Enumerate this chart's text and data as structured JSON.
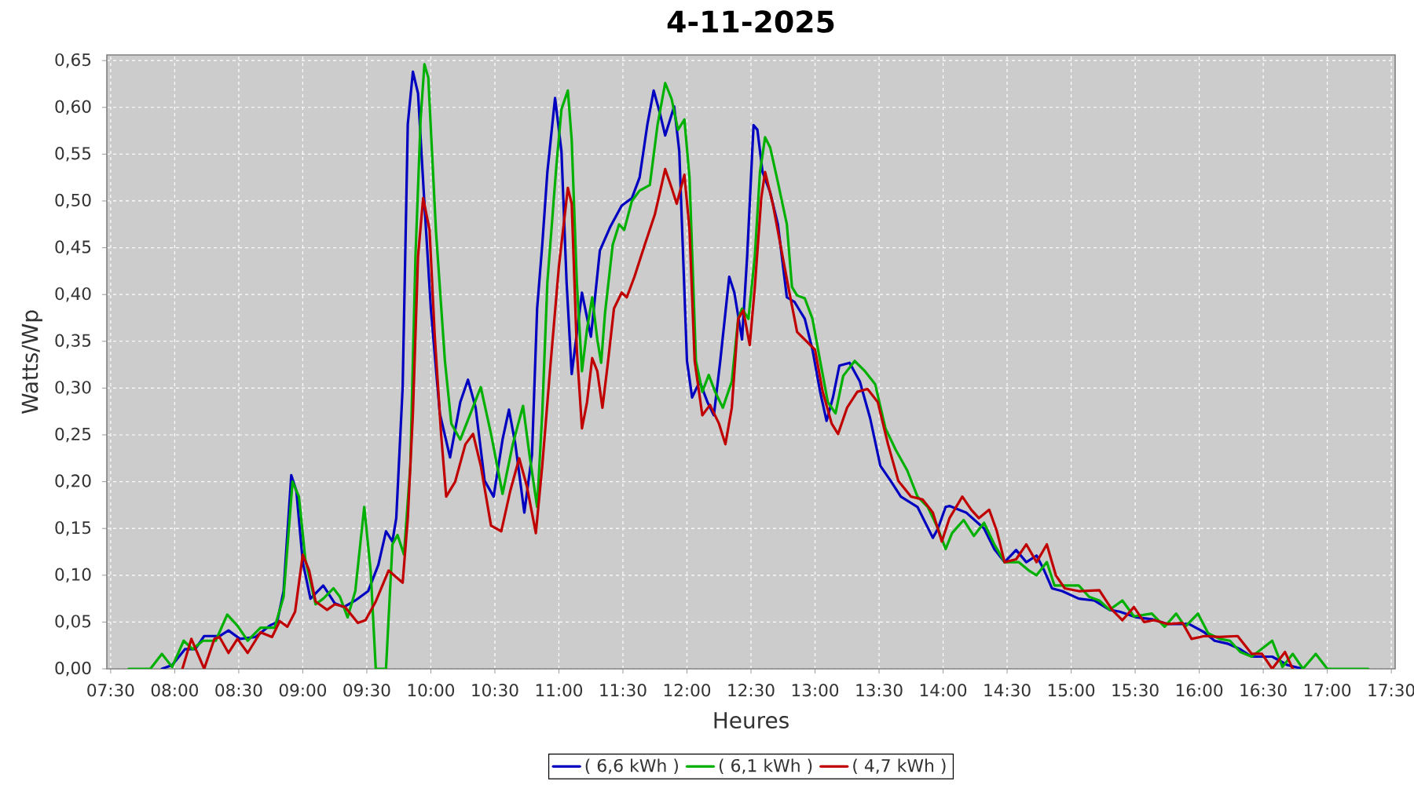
{
  "chart_data": {
    "type": "line",
    "title": "4-11-2025",
    "xlabel": "Heures",
    "ylabel": "Watts/Wp",
    "xlim": [
      7.47,
      17.53
    ],
    "ylim": [
      0,
      0.656
    ],
    "xticks": [
      {
        "value": 7.5,
        "label": "07:30"
      },
      {
        "value": 8,
        "label": "08:00"
      },
      {
        "value": 8.5,
        "label": "08:30"
      },
      {
        "value": 9,
        "label": "09:00"
      },
      {
        "value": 9.5,
        "label": "09:30"
      },
      {
        "value": 10,
        "label": "10:00"
      },
      {
        "value": 10.5,
        "label": "10:30"
      },
      {
        "value": 11,
        "label": "11:00"
      },
      {
        "value": 11.5,
        "label": "11:30"
      },
      {
        "value": 12,
        "label": "12:00"
      },
      {
        "value": 12.5,
        "label": "12:30"
      },
      {
        "value": 13,
        "label": "13:00"
      },
      {
        "value": 13.5,
        "label": "13:30"
      },
      {
        "value": 14,
        "label": "14:00"
      },
      {
        "value": 14.5,
        "label": "14:30"
      },
      {
        "value": 15,
        "label": "15:00"
      },
      {
        "value": 15.5,
        "label": "15:30"
      },
      {
        "value": 16,
        "label": "16:00"
      },
      {
        "value": 16.5,
        "label": "16:30"
      },
      {
        "value": 17,
        "label": "17:00"
      },
      {
        "value": 17.5,
        "label": "17:30"
      }
    ],
    "yticks": [
      {
        "value": 0,
        "label": "0,00"
      },
      {
        "value": 0.05,
        "label": "0,05"
      },
      {
        "value": 0.1,
        "label": "0,10"
      },
      {
        "value": 0.15,
        "label": "0,15"
      },
      {
        "value": 0.2,
        "label": "0,20"
      },
      {
        "value": 0.25,
        "label": "0,25"
      },
      {
        "value": 0.3,
        "label": "0,30"
      },
      {
        "value": 0.35,
        "label": "0,35"
      },
      {
        "value": 0.4,
        "label": "0,40"
      },
      {
        "value": 0.45,
        "label": "0,45"
      },
      {
        "value": 0.5,
        "label": "0,50"
      },
      {
        "value": 0.55,
        "label": "0,55"
      },
      {
        "value": 0.6,
        "label": "0,60"
      },
      {
        "value": 0.65,
        "label": "0,65"
      }
    ],
    "grid": true,
    "legend": "bottom",
    "series": [
      {
        "name": "( 6,6 kWh )",
        "color": "#0000c0",
        "x": [
          7.9,
          7.98,
          8.08,
          8.16,
          8.23,
          8.35,
          8.42,
          8.51,
          8.63,
          8.74,
          8.8,
          8.85,
          8.91,
          8.95,
          9.0,
          9.06,
          9.16,
          9.25,
          9.32,
          9.41,
          9.51,
          9.59,
          9.65,
          9.7,
          9.73,
          9.78,
          9.82,
          9.86,
          9.9,
          9.95,
          10.0,
          10.07,
          10.15,
          10.23,
          10.29,
          10.35,
          10.42,
          10.49,
          10.56,
          10.61,
          10.66,
          10.73,
          10.79,
          10.83,
          10.87,
          10.91,
          10.97,
          11.02,
          11.06,
          11.1,
          11.18,
          11.25,
          11.32,
          11.4,
          11.49,
          11.57,
          11.63,
          11.69,
          11.74,
          11.79,
          11.83,
          11.9,
          11.94,
          12.0,
          12.04,
          12.1,
          12.16,
          12.21,
          12.26,
          12.33,
          12.37,
          12.43,
          12.47,
          12.52,
          12.55,
          12.59,
          12.65,
          12.71,
          12.78,
          12.84,
          12.92,
          12.98,
          13.04,
          13.09,
          13.14,
          13.19,
          13.27,
          13.35,
          13.43,
          13.51,
          13.59,
          13.67,
          13.8,
          13.92,
          13.96,
          14.02,
          14.05,
          14.18,
          14.32,
          14.4,
          14.48,
          14.57,
          14.65,
          14.73,
          14.79,
          14.85,
          14.93,
          15.06,
          15.18,
          15.3,
          15.38,
          15.51,
          15.63,
          15.75,
          15.92,
          16.04,
          16.12,
          16.22,
          16.32,
          16.41,
          16.57,
          16.69,
          16.81
        ],
        "values": [
          0,
          0.004,
          0.021,
          0.021,
          0.035,
          0.035,
          0.041,
          0.032,
          0.034,
          0.046,
          0.05,
          0.083,
          0.207,
          0.19,
          0.114,
          0.075,
          0.089,
          0.07,
          0.066,
          0.073,
          0.083,
          0.111,
          0.147,
          0.136,
          0.161,
          0.301,
          0.582,
          0.638,
          0.615,
          0.497,
          0.385,
          0.273,
          0.226,
          0.285,
          0.309,
          0.279,
          0.201,
          0.184,
          0.245,
          0.277,
          0.24,
          0.167,
          0.229,
          0.385,
          0.453,
          0.531,
          0.61,
          0.553,
          0.413,
          0.315,
          0.402,
          0.355,
          0.447,
          0.472,
          0.495,
          0.503,
          0.525,
          0.581,
          0.618,
          0.593,
          0.57,
          0.601,
          0.553,
          0.329,
          0.29,
          0.307,
          0.285,
          0.271,
          0.329,
          0.419,
          0.402,
          0.352,
          0.441,
          0.581,
          0.576,
          0.531,
          0.509,
          0.475,
          0.397,
          0.392,
          0.374,
          0.341,
          0.296,
          0.265,
          0.29,
          0.324,
          0.327,
          0.307,
          0.268,
          0.217,
          0.201,
          0.184,
          0.173,
          0.14,
          0.15,
          0.173,
          0.174,
          0.167,
          0.15,
          0.128,
          0.114,
          0.127,
          0.114,
          0.121,
          0.105,
          0.086,
          0.083,
          0.075,
          0.073,
          0.063,
          0.061,
          0.055,
          0.053,
          0.048,
          0.048,
          0.039,
          0.03,
          0.027,
          0.021,
          0.013,
          0.013,
          0.004,
          0
        ]
      },
      {
        "name": "( 6,1 kWh )",
        "color": "#00b000",
        "x": [
          7.64,
          7.81,
          7.9,
          7.98,
          8.07,
          8.14,
          8.22,
          8.32,
          8.41,
          8.49,
          8.57,
          8.67,
          8.78,
          8.85,
          8.92,
          8.97,
          9.02,
          9.1,
          9.16,
          9.24,
          9.29,
          9.35,
          9.41,
          9.48,
          9.53,
          9.57,
          9.65,
          9.7,
          9.74,
          9.79,
          9.84,
          9.88,
          9.92,
          9.95,
          9.98,
          10.04,
          10.11,
          10.16,
          10.23,
          10.31,
          10.39,
          10.47,
          10.56,
          10.64,
          10.72,
          10.77,
          10.83,
          10.87,
          10.91,
          10.98,
          11.02,
          11.07,
          11.1,
          11.14,
          11.18,
          11.22,
          11.26,
          11.3,
          11.33,
          11.36,
          11.42,
          11.47,
          11.51,
          11.57,
          11.63,
          11.71,
          11.77,
          11.83,
          11.88,
          11.93,
          11.98,
          12.02,
          12.07,
          12.12,
          12.17,
          12.22,
          12.28,
          12.35,
          12.4,
          12.43,
          12.48,
          12.53,
          12.57,
          12.61,
          12.65,
          12.71,
          12.78,
          12.82,
          12.86,
          12.92,
          12.98,
          13.04,
          13.1,
          13.16,
          13.22,
          13.31,
          13.39,
          13.47,
          13.55,
          13.63,
          13.72,
          13.8,
          13.88,
          13.96,
          14.02,
          14.07,
          14.16,
          14.24,
          14.32,
          14.4,
          14.48,
          14.59,
          14.67,
          14.73,
          14.81,
          14.87,
          14.97,
          15.06,
          15.14,
          15.22,
          15.3,
          15.4,
          15.49,
          15.63,
          15.73,
          15.82,
          15.89,
          15.99,
          16.07,
          16.16,
          16.24,
          16.32,
          16.41,
          16.57,
          16.65,
          16.73,
          16.81,
          16.91,
          17.0,
          17.06,
          17.32
        ],
        "values": [
          0,
          0,
          0.016,
          0.002,
          0.03,
          0.021,
          0.03,
          0.03,
          0.058,
          0.046,
          0.03,
          0.044,
          0.044,
          0.077,
          0.2,
          0.184,
          0.117,
          0.069,
          0.075,
          0.086,
          0.077,
          0.055,
          0.083,
          0.173,
          0.105,
          0,
          0,
          0.133,
          0.143,
          0.122,
          0.217,
          0.441,
          0.587,
          0.646,
          0.632,
          0.468,
          0.329,
          0.262,
          0.245,
          0.273,
          0.301,
          0.251,
          0.187,
          0.24,
          0.281,
          0.229,
          0.173,
          0.273,
          0.413,
          0.537,
          0.598,
          0.618,
          0.565,
          0.413,
          0.318,
          0.363,
          0.397,
          0.352,
          0.327,
          0.38,
          0.453,
          0.475,
          0.469,
          0.5,
          0.511,
          0.517,
          0.581,
          0.626,
          0.609,
          0.576,
          0.587,
          0.525,
          0.329,
          0.296,
          0.314,
          0.296,
          0.279,
          0.307,
          0.374,
          0.385,
          0.374,
          0.441,
          0.531,
          0.568,
          0.557,
          0.52,
          0.475,
          0.408,
          0.399,
          0.396,
          0.374,
          0.329,
          0.285,
          0.273,
          0.313,
          0.329,
          0.318,
          0.304,
          0.257,
          0.234,
          0.212,
          0.184,
          0.173,
          0.15,
          0.128,
          0.145,
          0.159,
          0.142,
          0.156,
          0.133,
          0.114,
          0.114,
          0.105,
          0.1,
          0.114,
          0.089,
          0.089,
          0.089,
          0.077,
          0.073,
          0.063,
          0.073,
          0.056,
          0.059,
          0.045,
          0.059,
          0.045,
          0.059,
          0.038,
          0.032,
          0.03,
          0.018,
          0.013,
          0.03,
          0.002,
          0.016,
          0,
          0.016,
          0,
          0,
          0
        ]
      },
      {
        "name": "( 4,7 kWh )",
        "color": "#c00000",
        "x": [
          8.06,
          8.13,
          8.18,
          8.23,
          8.31,
          8.35,
          8.42,
          8.49,
          8.57,
          8.67,
          8.76,
          8.82,
          8.88,
          8.94,
          9.0,
          9.05,
          9.1,
          9.19,
          9.25,
          9.33,
          9.43,
          9.49,
          9.57,
          9.67,
          9.78,
          9.82,
          9.86,
          9.9,
          9.94,
          9.99,
          10.03,
          10.08,
          10.12,
          10.19,
          10.27,
          10.33,
          10.39,
          10.47,
          10.55,
          10.62,
          10.69,
          10.75,
          10.82,
          10.87,
          10.93,
          11.0,
          11.07,
          11.1,
          11.14,
          11.18,
          11.22,
          11.26,
          11.3,
          11.34,
          11.38,
          11.43,
          11.49,
          11.53,
          11.59,
          11.67,
          11.75,
          11.83,
          11.88,
          11.92,
          11.98,
          12.02,
          12.06,
          12.12,
          12.18,
          12.25,
          12.3,
          12.35,
          12.4,
          12.44,
          12.49,
          12.53,
          12.58,
          12.61,
          12.67,
          12.73,
          12.8,
          12.86,
          12.94,
          13.0,
          13.06,
          13.13,
          13.18,
          13.25,
          13.33,
          13.41,
          13.49,
          13.57,
          13.65,
          13.75,
          13.84,
          13.92,
          13.99,
          14.05,
          14.15,
          14.22,
          14.28,
          14.36,
          14.42,
          14.48,
          14.57,
          14.65,
          14.73,
          14.81,
          14.88,
          14.95,
          15.06,
          15.22,
          15.32,
          15.4,
          15.49,
          15.57,
          15.65,
          15.75,
          15.87,
          15.94,
          16.04,
          16.16,
          16.3,
          16.41,
          16.49,
          16.57,
          16.67,
          16.73
        ],
        "values": [
          0,
          0.032,
          0.016,
          0,
          0.032,
          0.034,
          0.017,
          0.032,
          0.017,
          0.039,
          0.034,
          0.051,
          0.045,
          0.061,
          0.122,
          0.105,
          0.072,
          0.063,
          0.069,
          0.066,
          0.049,
          0.052,
          0.072,
          0.105,
          0.092,
          0.161,
          0.273,
          0.441,
          0.503,
          0.469,
          0.357,
          0.251,
          0.184,
          0.2,
          0.24,
          0.251,
          0.217,
          0.153,
          0.147,
          0.19,
          0.225,
          0.195,
          0.145,
          0.217,
          0.318,
          0.43,
          0.514,
          0.497,
          0.341,
          0.257,
          0.285,
          0.332,
          0.318,
          0.279,
          0.324,
          0.385,
          0.402,
          0.397,
          0.419,
          0.453,
          0.486,
          0.534,
          0.514,
          0.497,
          0.528,
          0.469,
          0.329,
          0.271,
          0.282,
          0.262,
          0.24,
          0.279,
          0.374,
          0.383,
          0.346,
          0.408,
          0.503,
          0.531,
          0.497,
          0.453,
          0.402,
          0.36,
          0.349,
          0.341,
          0.296,
          0.262,
          0.251,
          0.279,
          0.296,
          0.299,
          0.285,
          0.24,
          0.201,
          0.184,
          0.181,
          0.167,
          0.136,
          0.161,
          0.184,
          0.17,
          0.161,
          0.17,
          0.147,
          0.114,
          0.117,
          0.133,
          0.114,
          0.133,
          0.1,
          0.086,
          0.083,
          0.084,
          0.063,
          0.052,
          0.066,
          0.05,
          0.052,
          0.048,
          0.049,
          0.032,
          0.035,
          0.034,
          0.035,
          0.016,
          0.016,
          0,
          0.018,
          0
        ]
      }
    ]
  }
}
